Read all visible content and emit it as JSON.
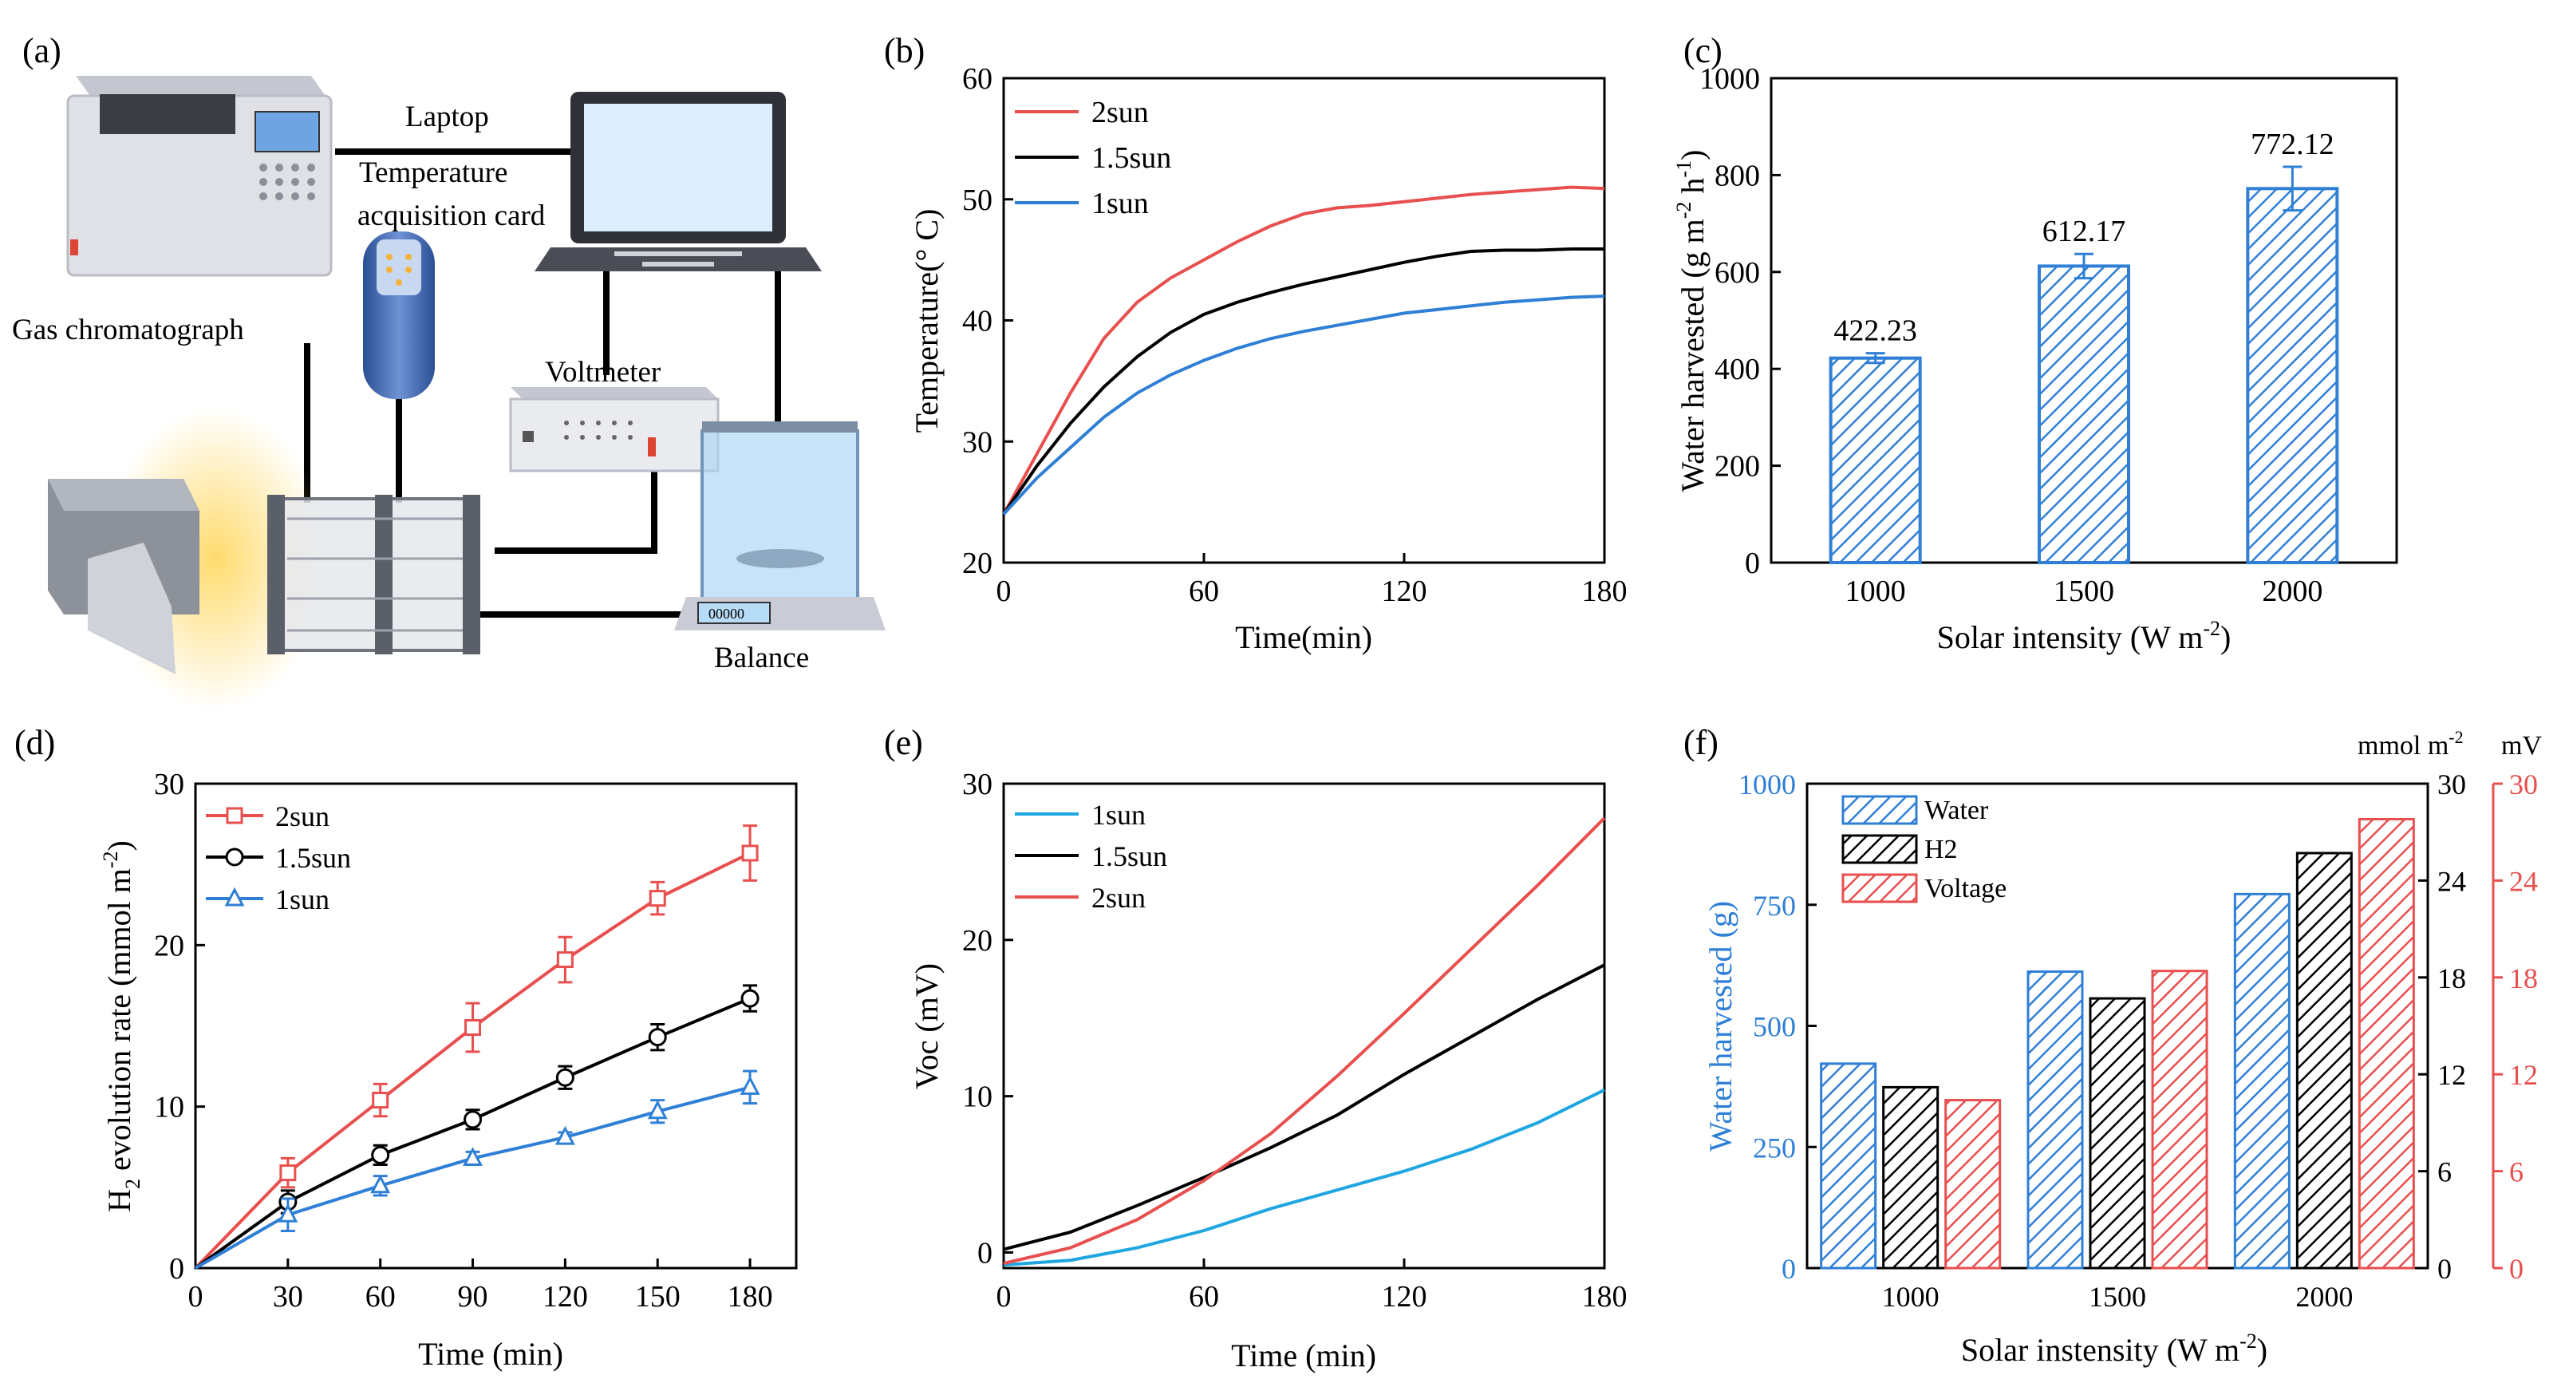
{
  "panels": {
    "a": "(a)",
    "b": "(b)",
    "c": "(c)",
    "d": "(d)",
    "e": "(e)",
    "f": "(f)"
  },
  "setup": {
    "gas_chromatograph": "Gas chromatograph",
    "laptop": "Laptop",
    "temp_card_line1": "Temperature",
    "temp_card_line2": "acquisition card",
    "voltmeter": "Voltmeter",
    "balance": "Balance",
    "balance_display": "00000",
    "colors": {
      "device": "#dfe1e6",
      "screen": "#dceefe",
      "glow": "#ffd966",
      "card": "#4a72b8",
      "case": "#b9bcc6"
    }
  },
  "chart_data": [
    {
      "id": "b",
      "type": "line",
      "xlabel": "Time(min)",
      "ylabel": "Temperature(° C)",
      "xlim": [
        0,
        180
      ],
      "ylim": [
        20,
        60
      ],
      "xticks": [
        "0",
        "60",
        "120",
        "180"
      ],
      "yticks": [
        "20",
        "30",
        "40",
        "50",
        "60"
      ],
      "legend": "top-left",
      "series": [
        {
          "name": "2sun",
          "color": "#e84f4f",
          "x": [
            0,
            10,
            20,
            30,
            40,
            50,
            60,
            70,
            80,
            90,
            100,
            110,
            120,
            130,
            140,
            150,
            160,
            170,
            180
          ],
          "y": [
            24,
            29,
            34,
            38.5,
            41.5,
            43.5,
            45,
            46.5,
            47.8,
            48.8,
            49.3,
            49.5,
            49.8,
            50.1,
            50.4,
            50.6,
            50.8,
            51,
            50.9
          ]
        },
        {
          "name": "1.5sun",
          "color": "#000000",
          "x": [
            0,
            10,
            20,
            30,
            40,
            50,
            60,
            70,
            80,
            90,
            100,
            110,
            120,
            130,
            140,
            150,
            160,
            170,
            180
          ],
          "y": [
            24,
            28,
            31.5,
            34.5,
            37,
            39,
            40.5,
            41.5,
            42.3,
            43,
            43.6,
            44.2,
            44.8,
            45.3,
            45.7,
            45.8,
            45.8,
            45.9,
            45.9
          ]
        },
        {
          "name": "1sun",
          "color": "#2f7fd6",
          "x": [
            0,
            10,
            20,
            30,
            40,
            50,
            60,
            70,
            80,
            90,
            100,
            110,
            120,
            130,
            140,
            150,
            160,
            170,
            180
          ],
          "y": [
            24,
            27,
            29.5,
            32,
            34,
            35.5,
            36.7,
            37.7,
            38.5,
            39.1,
            39.6,
            40.1,
            40.6,
            40.9,
            41.2,
            41.5,
            41.7,
            41.9,
            42
          ]
        }
      ]
    },
    {
      "id": "c",
      "type": "bar",
      "xlabel": "Solar intensity (W m",
      "xlabel_sup": "-2",
      "xlabel_end": ")",
      "ylabel": "Water harvested (g m",
      "ylabel_sup1": "-2",
      "ylabel_mid": " h",
      "ylabel_sup2": "-1",
      "ylabel_end": ")",
      "ylim": [
        0,
        1000
      ],
      "yticks": [
        "0",
        "200",
        "400",
        "600",
        "800",
        "1000"
      ],
      "categories": [
        "1000",
        "1500",
        "2000"
      ],
      "values": [
        422.23,
        612.17,
        772.12
      ],
      "value_labels": [
        "422.23",
        "612.17",
        "772.12"
      ],
      "errors": [
        10,
        25,
        45
      ],
      "color": "#2f7fd6"
    },
    {
      "id": "d",
      "type": "line",
      "xlabel": "Time  (min)",
      "ylabel_prefix": "H",
      "ylabel_sub": "2",
      "ylabel_rest": " evolution rate (mmol m",
      "ylabel_sup": "-2",
      "ylabel_end": ")",
      "xlim": [
        0,
        195
      ],
      "ylim": [
        0,
        30
      ],
      "xticks": [
        "0",
        "30",
        "60",
        "90",
        "120",
        "150",
        "180"
      ],
      "yticks": [
        "0",
        "10",
        "20",
        "30"
      ],
      "legend": "top-left",
      "series": [
        {
          "name": "2sun",
          "color": "#e84f4f",
          "marker": "square",
          "x": [
            0,
            30,
            60,
            90,
            120,
            150,
            180
          ],
          "y": [
            0,
            5.9,
            10.4,
            14.9,
            19.1,
            22.9,
            25.7
          ],
          "err": [
            0,
            0.9,
            1,
            1.5,
            1.4,
            1,
            1.7
          ]
        },
        {
          "name": "1.5sun",
          "color": "#000000",
          "marker": "circle",
          "x": [
            0,
            30,
            60,
            90,
            120,
            150,
            180
          ],
          "y": [
            0,
            4.1,
            7,
            9.2,
            11.8,
            14.3,
            16.7
          ],
          "err": [
            0,
            0.7,
            0.6,
            0.6,
            0.7,
            0.8,
            0.8
          ]
        },
        {
          "name": "1sun",
          "color": "#2f7fd6",
          "marker": "triangle",
          "x": [
            0,
            30,
            60,
            90,
            120,
            150,
            180
          ],
          "y": [
            0,
            3.3,
            5.1,
            6.8,
            8.1,
            9.7,
            11.2
          ],
          "err": [
            0,
            1,
            0.6,
            0.4,
            0.3,
            0.7,
            1
          ]
        }
      ]
    },
    {
      "id": "e",
      "type": "line",
      "xlabel": "Time (min)",
      "ylabel": "Voc (mV)",
      "xlim": [
        0,
        180
      ],
      "ylim": [
        -1,
        30
      ],
      "xticks": [
        "0",
        "60",
        "120",
        "180"
      ],
      "yticks": [
        "0",
        "10",
        "20",
        "30"
      ],
      "legend": "top-left",
      "series": [
        {
          "name": "1sun",
          "color": "#1fa6e0",
          "x": [
            0,
            20,
            40,
            60,
            80,
            100,
            120,
            140,
            160,
            180
          ],
          "y": [
            -0.8,
            -0.5,
            0.3,
            1.4,
            2.8,
            4,
            5.2,
            6.6,
            8.3,
            10.4
          ]
        },
        {
          "name": "1.5sun",
          "color": "#000000",
          "x": [
            0,
            20,
            40,
            60,
            80,
            100,
            120,
            140,
            160,
            180
          ],
          "y": [
            0.2,
            1.3,
            3,
            4.8,
            6.7,
            8.8,
            11.4,
            13.8,
            16.2,
            18.4
          ]
        },
        {
          "name": "2sun",
          "color": "#e84f4f",
          "x": [
            0,
            20,
            40,
            60,
            80,
            100,
            120,
            140,
            160,
            180
          ],
          "y": [
            -0.7,
            0.3,
            2.1,
            4.6,
            7.6,
            11.3,
            15.3,
            19.4,
            23.5,
            27.8
          ]
        }
      ]
    },
    {
      "id": "f",
      "type": "bar",
      "xlabel": "Solar instensity (W m",
      "xlabel_sup": "-2",
      "xlabel_end": ")",
      "ylabel": "Water harvested (g)",
      "y2_label": "mmol m",
      "y2_sup": "-2",
      "y3_label": "mV",
      "categories": [
        "1000",
        "1500",
        "2000"
      ],
      "ylim": [
        0,
        1000
      ],
      "yticks": [
        "0",
        "250",
        "500",
        "750",
        "1000"
      ],
      "y2lim": [
        0,
        30
      ],
      "y2ticks": [
        "0",
        "6",
        "12",
        "18",
        "24",
        "30"
      ],
      "y3lim": [
        0,
        30
      ],
      "y3ticks": [
        "0",
        "6",
        "12",
        "18",
        "24",
        "30"
      ],
      "legend": "top-left",
      "series": [
        {
          "name": "Water",
          "color": "#2f7fd6",
          "axis": "left",
          "values": [
            422,
            612,
            772
          ]
        },
        {
          "name": "H2",
          "color": "#000000",
          "axis": "mid",
          "values": [
            11.2,
            16.7,
            25.7
          ]
        },
        {
          "name": "Voltage",
          "color": "#e84f4f",
          "axis": "right",
          "values": [
            10.4,
            18.4,
            27.8
          ]
        }
      ]
    }
  ]
}
